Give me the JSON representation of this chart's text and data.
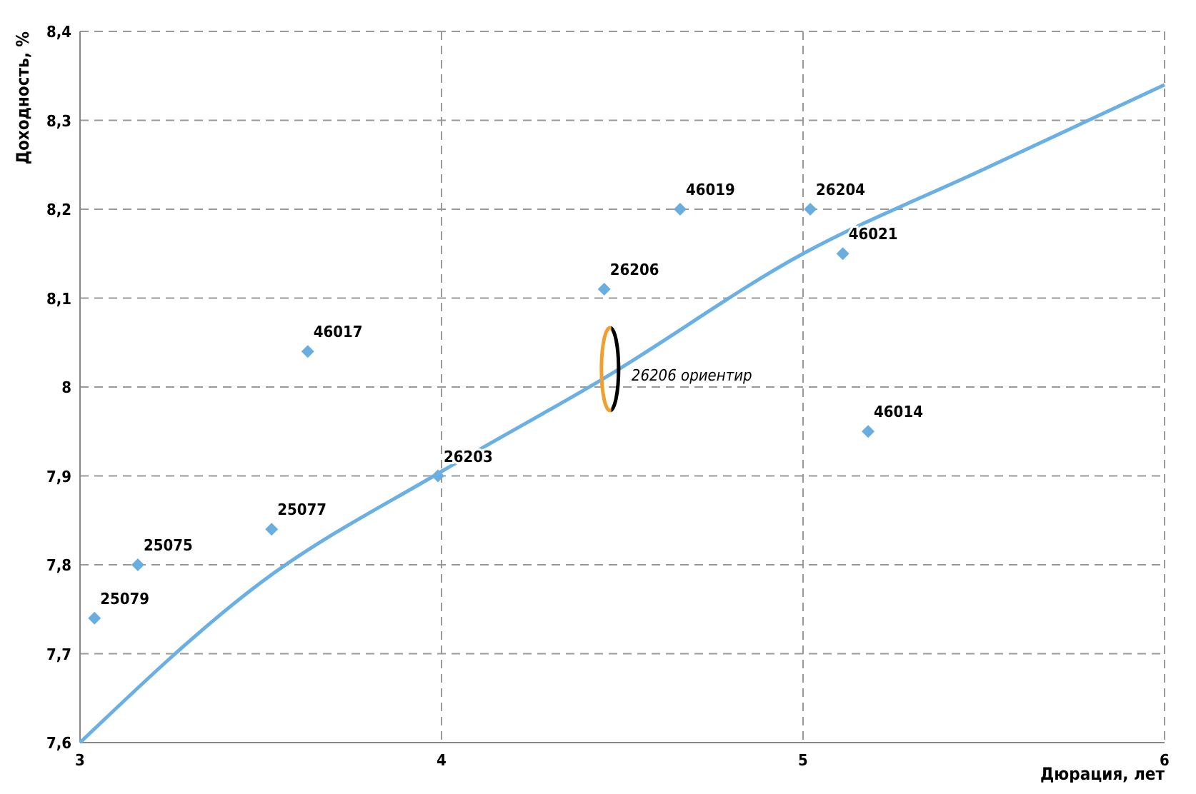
{
  "chart_data": {
    "type": "scatter",
    "xlabel": "Дюрация, лет",
    "ylabel": "Доходность, %",
    "xlim": [
      3,
      6
    ],
    "xticks": [
      3,
      4,
      5,
      6
    ],
    "ylim": [
      7.6,
      8.4
    ],
    "yticks": [
      {
        "value": 7.6,
        "label": "7,6"
      },
      {
        "value": 7.7,
        "label": "7,7"
      },
      {
        "value": 7.8,
        "label": "7,8"
      },
      {
        "value": 7.9,
        "label": "7,9"
      },
      {
        "value": 8,
        "label": "8"
      },
      {
        "value": 8.1,
        "label": "8,1"
      },
      {
        "value": 8.2,
        "label": "8,2"
      },
      {
        "value": 8.3,
        "label": "8,3"
      },
      {
        "value": 8.4,
        "label": "8,4"
      }
    ],
    "grid": true,
    "marker": "diamond",
    "series": [
      {
        "color": "#6aaee0",
        "x": [
          3.04,
          3.16,
          3.53,
          3.63,
          3.99,
          4.45,
          4.66,
          5.02,
          5.11,
          5.18
        ],
        "values": [
          7.74,
          7.8,
          7.84,
          8.04,
          7.9,
          8.11,
          8.2,
          8.2,
          8.15,
          7.95
        ]
      },
      {
        "type": "line",
        "color": "#6ab0e4",
        "marker": "none",
        "line_style": "solid",
        "x": [
          3,
          3.5,
          4,
          4.45,
          5,
          5.5,
          6
        ],
        "values": [
          7.6,
          7.78,
          7.905,
          8.01,
          8.15,
          8.245,
          8.34
        ]
      }
    ],
    "annotations": [
      {
        "text": "25079",
        "x": 3.04,
        "y": 7.74
      },
      {
        "text": "25075",
        "x": 3.16,
        "y": 7.8
      },
      {
        "text": "25077",
        "x": 3.53,
        "y": 7.84
      },
      {
        "text": "46017",
        "x": 3.63,
        "y": 8.04
      },
      {
        "text": "26203",
        "x": 3.99,
        "y": 7.9
      },
      {
        "text": "26206",
        "x": 4.45,
        "y": 8.11
      },
      {
        "text": "46019",
        "x": 4.66,
        "y": 8.2
      },
      {
        "text": "26204",
        "x": 5.02,
        "y": 8.2
      },
      {
        "text": "46021",
        "x": 5.11,
        "y": 8.15
      },
      {
        "text": "46014",
        "x": 5.18,
        "y": 7.95
      },
      {
        "text": "26206 ориентир",
        "x": 4.47,
        "y": 8.02
      }
    ]
  }
}
